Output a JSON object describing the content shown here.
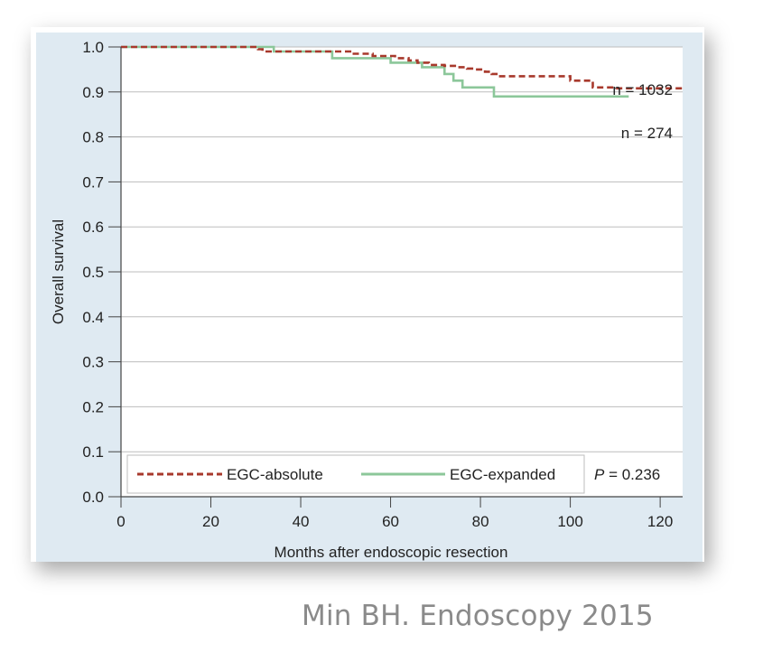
{
  "chart_data": {
    "type": "line",
    "title": "",
    "xlabel": "Months after endoscopic resection",
    "ylabel": "Overall survival",
    "xlim": [
      0,
      125
    ],
    "ylim": [
      0.0,
      1.0
    ],
    "x_ticks": [
      0,
      20,
      40,
      60,
      80,
      100,
      120
    ],
    "y_ticks": [
      0.0,
      0.1,
      0.2,
      0.3,
      0.4,
      0.5,
      0.6,
      0.7,
      0.8,
      0.9,
      1.0
    ],
    "x_tick_labels": [
      "0",
      "20",
      "40",
      "60",
      "80",
      "100",
      "120"
    ],
    "y_tick_labels": [
      "0.0",
      "0.1",
      "0.2",
      "0.3",
      "0.4",
      "0.5",
      "0.6",
      "0.7",
      "0.8",
      "0.9",
      "1.0"
    ],
    "grid": "horizontal",
    "series": [
      {
        "name": "EGC-absolute",
        "color": "#a8392c",
        "style": "dashed",
        "n_label": "n = 1032",
        "x": [
          0,
          30,
          30.5,
          31.5,
          38,
          46,
          51,
          56,
          61,
          64,
          66,
          68.5,
          72,
          75,
          77,
          79,
          81,
          82.5,
          84,
          93,
          100,
          104,
          105,
          110,
          125
        ],
        "y": [
          1.0,
          1.0,
          0.995,
          0.99,
          0.99,
          0.99,
          0.985,
          0.98,
          0.975,
          0.97,
          0.965,
          0.96,
          0.958,
          0.955,
          0.952,
          0.95,
          0.945,
          0.94,
          0.935,
          0.935,
          0.925,
          0.925,
          0.91,
          0.908,
          0.908
        ]
      },
      {
        "name": "EGC-expanded",
        "color": "#8cc79a",
        "style": "solid",
        "n_label": "n = 274",
        "x": [
          0,
          31,
          34,
          46,
          47,
          60,
          64,
          67,
          72,
          74,
          76,
          83,
          113
        ],
        "y": [
          1.0,
          1.0,
          0.99,
          0.99,
          0.975,
          0.965,
          0.965,
          0.955,
          0.94,
          0.925,
          0.91,
          0.89,
          0.89
        ]
      }
    ],
    "legend_position": "bottom",
    "annotations": {
      "p_label": "P",
      "p_value": " = 0.236"
    }
  },
  "citation": "Min BH. Endoscopy 2015"
}
